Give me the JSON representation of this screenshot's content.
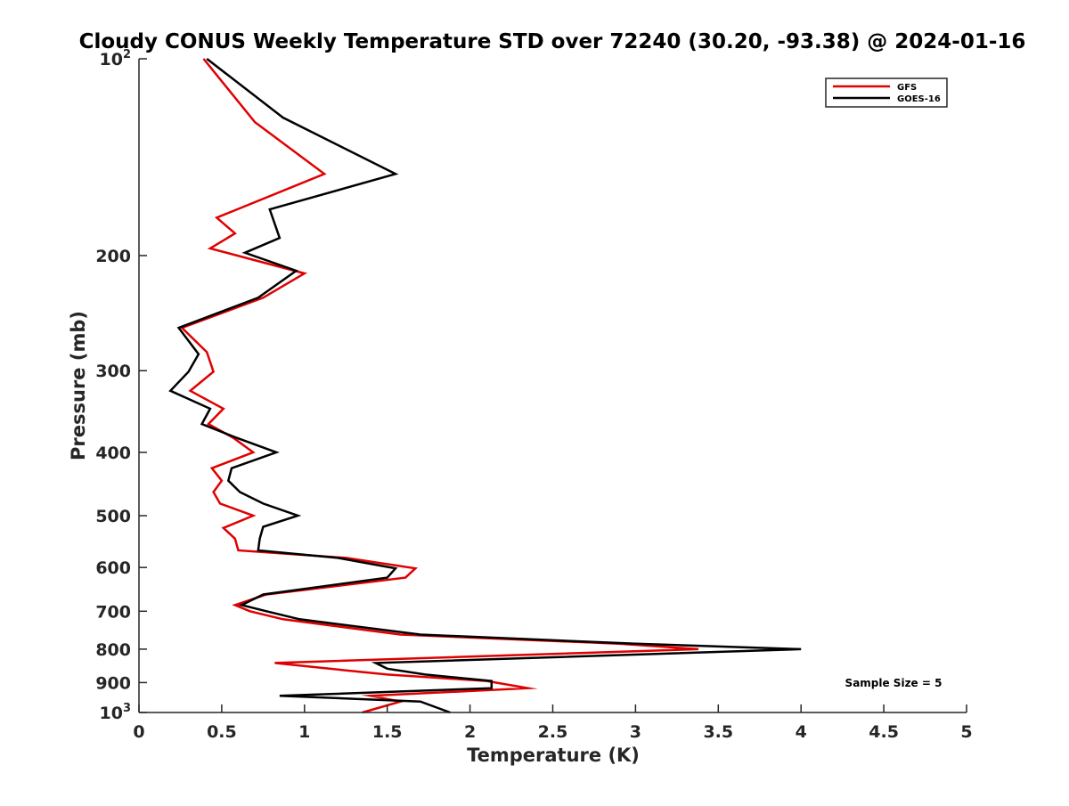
{
  "chart_data": {
    "type": "line",
    "title": "Cloudy CONUS Weekly Temperature STD over 72240 (30.20, -93.38) @ 2024-01-16",
    "xlabel": "Temperature (K)",
    "ylabel": "Pressure (mb)",
    "xlim": [
      0,
      5
    ],
    "ylim": [
      100,
      1000
    ],
    "yscale": "log",
    "ydirection": "reverse",
    "x_ticks": [
      {
        "value": 0,
        "label": "0"
      },
      {
        "value": 0.5,
        "label": "0.5"
      },
      {
        "value": 1,
        "label": "1"
      },
      {
        "value": 1.5,
        "label": "1.5"
      },
      {
        "value": 2,
        "label": "2"
      },
      {
        "value": 2.5,
        "label": "2.5"
      },
      {
        "value": 3,
        "label": "3"
      },
      {
        "value": 3.5,
        "label": "3.5"
      },
      {
        "value": 4,
        "label": "4"
      },
      {
        "value": 4.5,
        "label": "4.5"
      },
      {
        "value": 5,
        "label": "5"
      }
    ],
    "y_ticks": [
      {
        "value": 100,
        "base": "10",
        "exp": "2"
      },
      {
        "value": 200,
        "label": "200"
      },
      {
        "value": 300,
        "label": "300"
      },
      {
        "value": 400,
        "label": "400"
      },
      {
        "value": 500,
        "label": "500"
      },
      {
        "value": 600,
        "label": "600"
      },
      {
        "value": 700,
        "label": "700"
      },
      {
        "value": 800,
        "label": "800"
      },
      {
        "value": 900,
        "label": "900"
      },
      {
        "value": 1000,
        "base": "10",
        "exp": "3"
      }
    ],
    "grid": false,
    "legend_position": "top-right",
    "annotation": "Sample Size = 5",
    "series": [
      {
        "name": "GFS",
        "color": "#e00000",
        "points": [
          [
            0.39,
            100
          ],
          [
            0.7,
            125
          ],
          [
            1.12,
            150
          ],
          [
            0.47,
            175
          ],
          [
            0.58,
            185
          ],
          [
            0.43,
            195
          ],
          [
            1.0,
            213
          ],
          [
            0.75,
            232
          ],
          [
            0.26,
            258
          ],
          [
            0.41,
            281
          ],
          [
            0.45,
            301
          ],
          [
            0.31,
            322
          ],
          [
            0.51,
            343
          ],
          [
            0.42,
            362
          ],
          [
            0.57,
            380
          ],
          [
            0.69,
            400
          ],
          [
            0.44,
            423
          ],
          [
            0.5,
            442
          ],
          [
            0.45,
            460
          ],
          [
            0.49,
            479
          ],
          [
            0.69,
            500
          ],
          [
            0.51,
            522
          ],
          [
            0.58,
            542
          ],
          [
            0.6,
            565
          ],
          [
            1.25,
            580
          ],
          [
            1.67,
            602
          ],
          [
            1.61,
            622
          ],
          [
            0.77,
            660
          ],
          [
            0.58,
            685
          ],
          [
            0.67,
            700
          ],
          [
            0.87,
            720
          ],
          [
            1.58,
            760
          ],
          [
            2.9,
            785
          ],
          [
            3.38,
            800
          ],
          [
            0.82,
            840
          ],
          [
            1.15,
            857
          ],
          [
            1.5,
            875
          ],
          [
            2.1,
            895
          ],
          [
            2.35,
            918
          ],
          [
            1.4,
            943
          ],
          [
            1.58,
            962
          ],
          [
            1.35,
            1000
          ]
        ]
      },
      {
        "name": "GOES-16",
        "color": "#000000",
        "points": [
          [
            0.41,
            100
          ],
          [
            0.87,
            123
          ],
          [
            1.55,
            150
          ],
          [
            0.79,
            170
          ],
          [
            0.85,
            188
          ],
          [
            0.64,
            198
          ],
          [
            0.95,
            211
          ],
          [
            0.72,
            232
          ],
          [
            0.24,
            258
          ],
          [
            0.36,
            283
          ],
          [
            0.3,
            301
          ],
          [
            0.19,
            322
          ],
          [
            0.43,
            343
          ],
          [
            0.38,
            362
          ],
          [
            0.59,
            380
          ],
          [
            0.83,
            400
          ],
          [
            0.56,
            423
          ],
          [
            0.54,
            442
          ],
          [
            0.61,
            460
          ],
          [
            0.75,
            479
          ],
          [
            0.96,
            500
          ],
          [
            0.75,
            520
          ],
          [
            0.73,
            542
          ],
          [
            0.72,
            565
          ],
          [
            1.2,
            580
          ],
          [
            1.55,
            602
          ],
          [
            1.5,
            622
          ],
          [
            0.75,
            660
          ],
          [
            0.62,
            685
          ],
          [
            0.77,
            700
          ],
          [
            0.97,
            720
          ],
          [
            1.7,
            760
          ],
          [
            3.0,
            785
          ],
          [
            4.0,
            800
          ],
          [
            1.43,
            840
          ],
          [
            1.5,
            857
          ],
          [
            1.73,
            875
          ],
          [
            2.13,
            895
          ],
          [
            2.13,
            918
          ],
          [
            0.85,
            943
          ],
          [
            1.7,
            962
          ],
          [
            1.88,
            1000
          ]
        ]
      }
    ]
  }
}
